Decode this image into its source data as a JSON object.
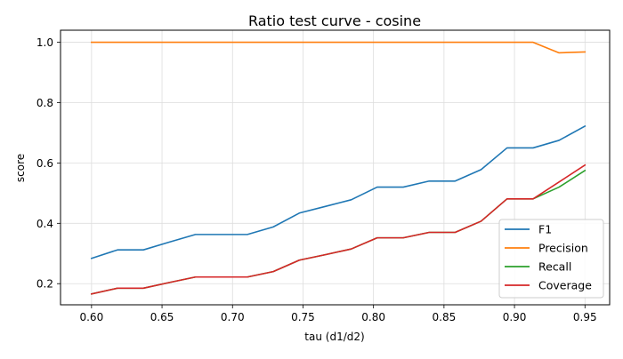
{
  "chart_data": {
    "type": "line",
    "title": "Ratio test curve - cosine",
    "xlabel": "tau (d1/d2)",
    "ylabel": "score",
    "xlim": [
      0.578,
      0.9675
    ],
    "ylim": [
      0.13,
      1.04
    ],
    "x_ticks": [
      0.6,
      0.65,
      0.7,
      0.75,
      0.8,
      0.85,
      0.9,
      0.95
    ],
    "x_tick_labels": [
      "0.60",
      "0.65",
      "0.70",
      "0.75",
      "0.80",
      "0.85",
      "0.90",
      "0.95"
    ],
    "y_ticks": [
      0.2,
      0.4,
      0.6,
      0.8,
      1.0
    ],
    "y_tick_labels": [
      "0.2",
      "0.4",
      "0.6",
      "0.8",
      "1.0"
    ],
    "grid": true,
    "legend_position": "lower-right",
    "x": [
      0.6,
      0.6184,
      0.6368,
      0.6553,
      0.6737,
      0.6921,
      0.7105,
      0.7289,
      0.7474,
      0.7658,
      0.7842,
      0.8026,
      0.8211,
      0.8395,
      0.8579,
      0.8763,
      0.8947,
      0.9132,
      0.9316,
      0.95
    ],
    "series": [
      {
        "name": "F1",
        "color": "#1f77b4",
        "values": [
          0.284,
          0.312,
          0.312,
          0.338,
          0.363,
          0.363,
          0.363,
          0.388,
          0.434,
          0.456,
          0.478,
          0.52,
          0.52,
          0.54,
          0.54,
          0.578,
          0.65,
          0.65,
          0.675,
          0.722
        ]
      },
      {
        "name": "Precision",
        "color": "#ff7f0e",
        "values": [
          1.0,
          1.0,
          1.0,
          1.0,
          1.0,
          1.0,
          1.0,
          1.0,
          1.0,
          1.0,
          1.0,
          1.0,
          1.0,
          1.0,
          1.0,
          1.0,
          1.0,
          1.0,
          0.965,
          0.968
        ]
      },
      {
        "name": "Recall",
        "color": "#2ca02c",
        "values": [
          0.166,
          0.185,
          0.185,
          0.204,
          0.222,
          0.222,
          0.222,
          0.24,
          0.278,
          0.296,
          0.315,
          0.352,
          0.352,
          0.37,
          0.37,
          0.407,
          0.481,
          0.481,
          0.52,
          0.575
        ]
      },
      {
        "name": "Coverage",
        "color": "#d62728",
        "values": [
          0.166,
          0.185,
          0.185,
          0.204,
          0.222,
          0.222,
          0.222,
          0.24,
          0.278,
          0.296,
          0.315,
          0.352,
          0.352,
          0.37,
          0.37,
          0.407,
          0.481,
          0.481,
          0.537,
          0.593
        ]
      }
    ]
  }
}
